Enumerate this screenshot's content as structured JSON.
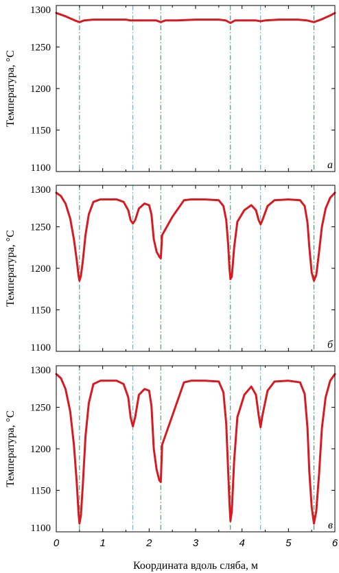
{
  "colors": {
    "series": "#d8191f",
    "line_dark_green": "#2e8b57",
    "line_cyan": "#3ab0c8",
    "axis": "#000000"
  },
  "chart_data": [
    {
      "type": "line",
      "panel_label": "а",
      "ylabel": "Температура, °С",
      "ylim": [
        1100,
        1300
      ],
      "yticks": [
        "1100",
        "1150",
        "1200",
        "1250",
        "1300"
      ],
      "xlim": [
        0,
        6
      ],
      "grid": false,
      "vlines": [
        {
          "x": 0.5,
          "color": "dark-green"
        },
        {
          "x": 1.65,
          "color": "cyan"
        },
        {
          "x": 2.25,
          "color": "dark-green"
        },
        {
          "x": 3.75,
          "color": "dark-green"
        },
        {
          "x": 4.4,
          "color": "cyan"
        },
        {
          "x": 5.55,
          "color": "dark-green"
        }
      ],
      "series": [
        {
          "x": [
            0,
            0.2,
            0.4,
            0.5,
            0.6,
            0.8,
            1.0,
            1.5,
            1.6,
            1.65,
            1.7,
            2.0,
            2.15,
            2.25,
            2.35,
            2.6,
            3.0,
            3.5,
            3.65,
            3.75,
            3.85,
            4.1,
            4.3,
            4.4,
            4.5,
            4.8,
            5.2,
            5.4,
            5.55,
            5.7,
            5.9,
            6.0
          ],
          "y": [
            1291,
            1287,
            1282,
            1280,
            1282,
            1283,
            1283,
            1283,
            1282,
            1282,
            1282,
            1282,
            1282,
            1280,
            1282,
            1282,
            1283,
            1283,
            1282,
            1279,
            1282,
            1282,
            1282,
            1281,
            1282,
            1283,
            1283,
            1282,
            1280,
            1283,
            1288,
            1291
          ]
        }
      ]
    },
    {
      "type": "line",
      "panel_label": "б",
      "ylabel": "Температура, °С",
      "ylim": [
        1100,
        1300
      ],
      "yticks": [
        "1100",
        "1150",
        "1200",
        "1250",
        "1300"
      ],
      "xlim": [
        0,
        6
      ],
      "grid": false,
      "vlines": [
        {
          "x": 0.5,
          "color": "dark-green"
        },
        {
          "x": 1.65,
          "color": "cyan"
        },
        {
          "x": 2.25,
          "color": "dark-green"
        },
        {
          "x": 3.75,
          "color": "dark-green"
        },
        {
          "x": 4.4,
          "color": "cyan"
        },
        {
          "x": 5.55,
          "color": "dark-green"
        }
      ],
      "series": [
        {
          "x": [
            0,
            0.1,
            0.2,
            0.3,
            0.38,
            0.44,
            0.48,
            0.5,
            0.53,
            0.57,
            0.63,
            0.7,
            0.8,
            0.95,
            1.3,
            1.45,
            1.55,
            1.6,
            1.65,
            1.7,
            1.78,
            1.9,
            2.0,
            2.05,
            2.1,
            2.16,
            2.22,
            2.25,
            2.28,
            2.5,
            2.75,
            2.9,
            3.2,
            3.5,
            3.6,
            3.66,
            3.7,
            3.73,
            3.75,
            3.78,
            3.83,
            3.9,
            4.05,
            4.2,
            4.3,
            4.36,
            4.4,
            4.44,
            4.55,
            4.7,
            5.0,
            5.25,
            5.35,
            5.41,
            5.45,
            5.5,
            5.55,
            5.6,
            5.66,
            5.72,
            5.8,
            5.9,
            6.0
          ],
          "y": [
            1291,
            1287,
            1278,
            1260,
            1235,
            1210,
            1191,
            1185,
            1191,
            1208,
            1240,
            1265,
            1280,
            1283,
            1283,
            1280,
            1270,
            1258,
            1254,
            1258,
            1272,
            1278,
            1276,
            1265,
            1235,
            1220,
            1214,
            1212,
            1240,
            1262,
            1282,
            1283,
            1283,
            1282,
            1275,
            1258,
            1230,
            1200,
            1187,
            1190,
            1225,
            1256,
            1270,
            1276,
            1270,
            1258,
            1253,
            1258,
            1275,
            1282,
            1283,
            1282,
            1275,
            1255,
            1225,
            1195,
            1185,
            1192,
            1220,
            1250,
            1272,
            1285,
            1291
          ]
        }
      ]
    },
    {
      "type": "line",
      "panel_label": "в",
      "ylabel": "Температура, °С",
      "xlabel": "Координата вдоль сляба, м",
      "ylim": [
        1100,
        1300
      ],
      "yticks": [
        "1100",
        "1150",
        "1200",
        "1250",
        "1300"
      ],
      "xlim": [
        0,
        6
      ],
      "xticks": [
        "0",
        "1",
        "2",
        "3",
        "4",
        "5",
        "6"
      ],
      "grid": false,
      "vlines": [
        {
          "x": 0.5,
          "color": "dark-green"
        },
        {
          "x": 1.65,
          "color": "cyan"
        },
        {
          "x": 2.25,
          "color": "dark-green"
        },
        {
          "x": 3.75,
          "color": "dark-green"
        },
        {
          "x": 4.4,
          "color": "cyan"
        },
        {
          "x": 5.55,
          "color": "dark-green"
        }
      ],
      "series": [
        {
          "x": [
            0,
            0.1,
            0.2,
            0.3,
            0.38,
            0.44,
            0.48,
            0.5,
            0.53,
            0.57,
            0.63,
            0.7,
            0.8,
            0.95,
            1.3,
            1.45,
            1.55,
            1.6,
            1.65,
            1.7,
            1.78,
            1.9,
            2.0,
            2.05,
            2.1,
            2.16,
            2.22,
            2.25,
            2.28,
            2.5,
            2.75,
            2.9,
            3.2,
            3.5,
            3.6,
            3.66,
            3.7,
            3.73,
            3.75,
            3.78,
            3.83,
            3.9,
            4.05,
            4.2,
            4.3,
            4.36,
            4.4,
            4.44,
            4.55,
            4.7,
            5.0,
            5.25,
            5.35,
            5.41,
            5.45,
            5.5,
            5.55,
            5.6,
            5.66,
            5.72,
            5.8,
            5.9,
            6.0
          ],
          "y": [
            1290,
            1285,
            1272,
            1245,
            1205,
            1160,
            1122,
            1110,
            1120,
            1155,
            1215,
            1255,
            1278,
            1282,
            1282,
            1278,
            1262,
            1238,
            1227,
            1238,
            1265,
            1272,
            1270,
            1252,
            1200,
            1175,
            1162,
            1160,
            1205,
            1240,
            1280,
            1282,
            1282,
            1281,
            1268,
            1230,
            1175,
            1135,
            1113,
            1125,
            1185,
            1238,
            1265,
            1275,
            1265,
            1240,
            1226,
            1240,
            1270,
            1281,
            1282,
            1280,
            1266,
            1225,
            1172,
            1130,
            1110,
            1125,
            1170,
            1225,
            1262,
            1282,
            1290
          ]
        }
      ]
    }
  ]
}
